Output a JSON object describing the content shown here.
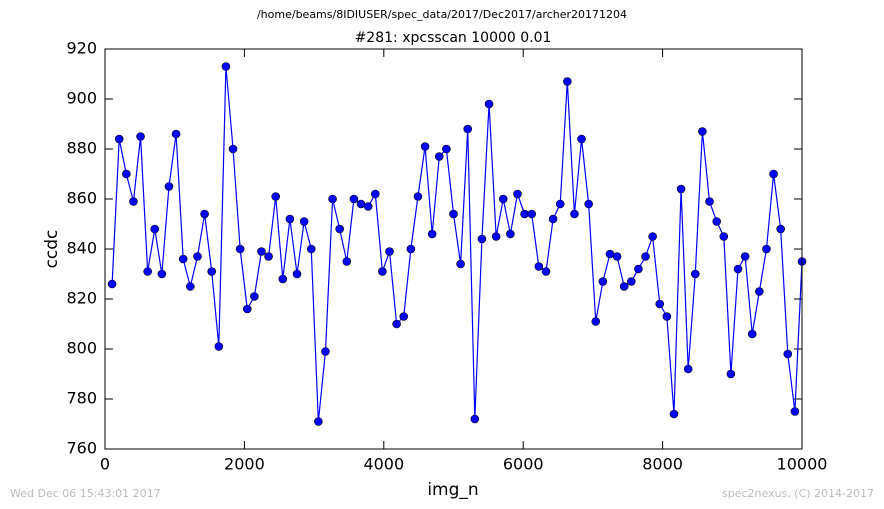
{
  "chart_data": {
    "type": "line",
    "suptitle": "/home/beams/8IDIUSER/spec_data/2017/Dec2017/archer20171204",
    "title": "#281: xpcsscan 10000 0.01",
    "xlabel": "img_n",
    "ylabel": "ccdc",
    "footer_left": "Wed Dec 06 15:43:01 2017",
    "footer_right": "spec2nexus, (C) 2014-2017",
    "x": [
      102,
      204,
      306,
      408,
      510,
      612,
      714,
      816,
      918,
      1020,
      1122,
      1224,
      1327,
      1429,
      1531,
      1633,
      1735,
      1837,
      1939,
      2041,
      2143,
      2245,
      2347,
      2449,
      2551,
      2653,
      2755,
      2857,
      2959,
      3061,
      3163,
      3265,
      3367,
      3469,
      3571,
      3673,
      3776,
      3878,
      3980,
      4082,
      4184,
      4286,
      4388,
      4490,
      4592,
      4694,
      4796,
      4898,
      5000,
      5102,
      5204,
      5306,
      5408,
      5510,
      5612,
      5714,
      5816,
      5918,
      6020,
      6122,
      6224,
      6327,
      6429,
      6531,
      6633,
      6735,
      6837,
      6939,
      7041,
      7143,
      7245,
      7347,
      7449,
      7551,
      7653,
      7755,
      7857,
      7959,
      8061,
      8163,
      8265,
      8367,
      8469,
      8571,
      8673,
      8776,
      8878,
      8980,
      9082,
      9184,
      9286,
      9388,
      9490,
      9592,
      9694,
      9796,
      9898,
      10000
    ],
    "series": [
      {
        "color": "#0000ff",
        "values": [
          826,
          884,
          870,
          859,
          885,
          831,
          848,
          830,
          865,
          886,
          836,
          825,
          837,
          854,
          831,
          801,
          913,
          880,
          840,
          816,
          821,
          839,
          837,
          861,
          828,
          852,
          830,
          851,
          840,
          771,
          799,
          860,
          848,
          835,
          860,
          858,
          857,
          862,
          831,
          839,
          810,
          813,
          840,
          861,
          881,
          846,
          877,
          880,
          854,
          834,
          888,
          772,
          844,
          898,
          845,
          860,
          846,
          862,
          854,
          854,
          833,
          831,
          852,
          858,
          907,
          854,
          884,
          858,
          811,
          827,
          838,
          837,
          825,
          827,
          832,
          837,
          845,
          818,
          813,
          774,
          864,
          792,
          830,
          887,
          859,
          851,
          845,
          790,
          832,
          837,
          806,
          823,
          840,
          870,
          848,
          798,
          775,
          835
        ]
      }
    ],
    "xlim": [
      0,
      10000
    ],
    "xticks": [
      0,
      2000,
      4000,
      6000,
      8000,
      10000
    ],
    "ylim": [
      760,
      920
    ],
    "yticks": [
      760,
      780,
      800,
      820,
      840,
      860,
      880,
      900,
      920
    ],
    "grid": false
  }
}
